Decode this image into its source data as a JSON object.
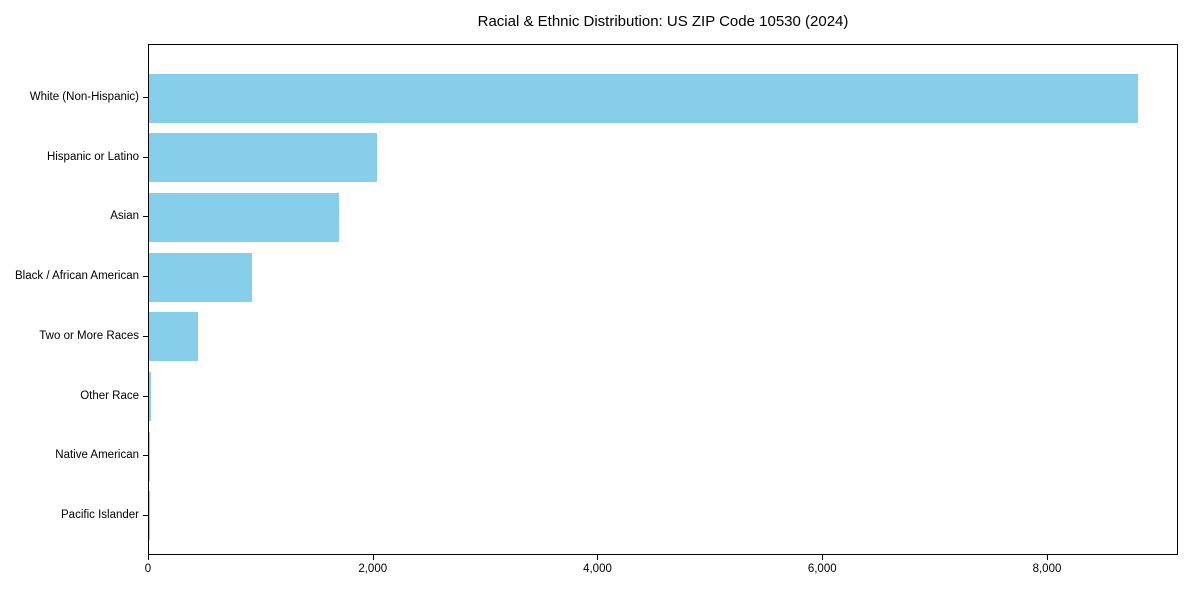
{
  "chart_data": {
    "type": "bar",
    "orientation": "horizontal",
    "title": "Racial & Ethnic Distribution: US ZIP Code 10530 (2024)",
    "xlabel": "",
    "ylabel": "",
    "categories": [
      "White (Non-Hispanic)",
      "Hispanic or Latino",
      "Asian",
      "Black / African American",
      "Two or More Races",
      "Other Race",
      "Native American",
      "Pacific Islander"
    ],
    "values": [
      8800,
      2030,
      1690,
      915,
      440,
      15,
      5,
      2
    ],
    "xlim": [
      0,
      9166
    ],
    "xticks": [
      0,
      2000,
      4000,
      6000,
      8000
    ],
    "xticklabels": [
      "0",
      "2,000",
      "4,000",
      "6,000",
      "8,000"
    ],
    "bar_color": "#87CEEB",
    "grid": false,
    "legend": null
  }
}
